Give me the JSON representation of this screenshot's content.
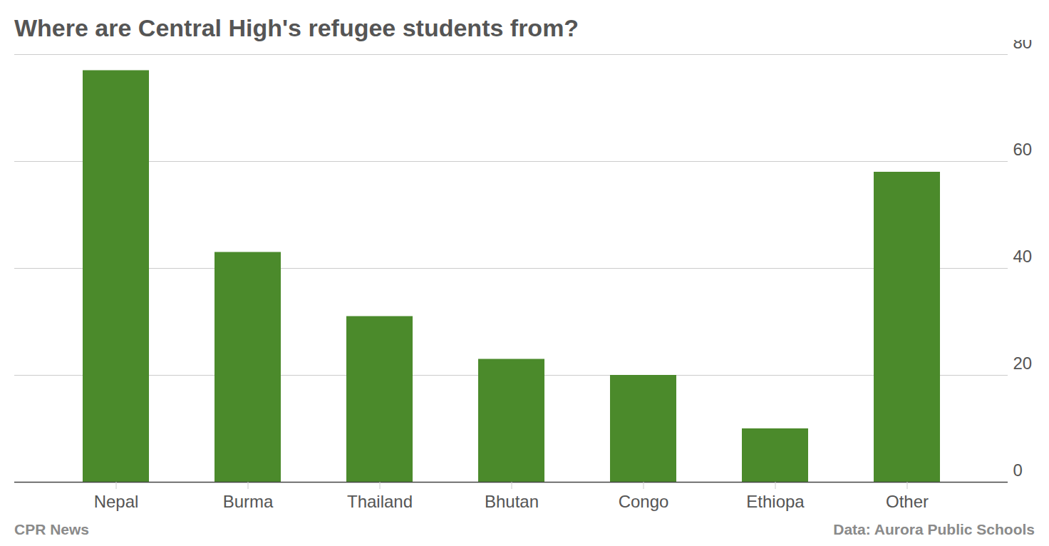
{
  "chart_data": {
    "type": "bar",
    "title": "Where are Central High's refugee students from?",
    "categories": [
      "Nepal",
      "Burma",
      "Thailand",
      "Bhutan",
      "Congo",
      "Ethiopa",
      "Other"
    ],
    "values": [
      77,
      43,
      31,
      23,
      20,
      10,
      58
    ],
    "color": "#4b8a2b",
    "ylim": [
      0,
      80
    ],
    "yticks": [
      0,
      20,
      40,
      60,
      80
    ],
    "grid": true,
    "credit": "CPR News",
    "source": "Data: Aurora Public Schools"
  }
}
